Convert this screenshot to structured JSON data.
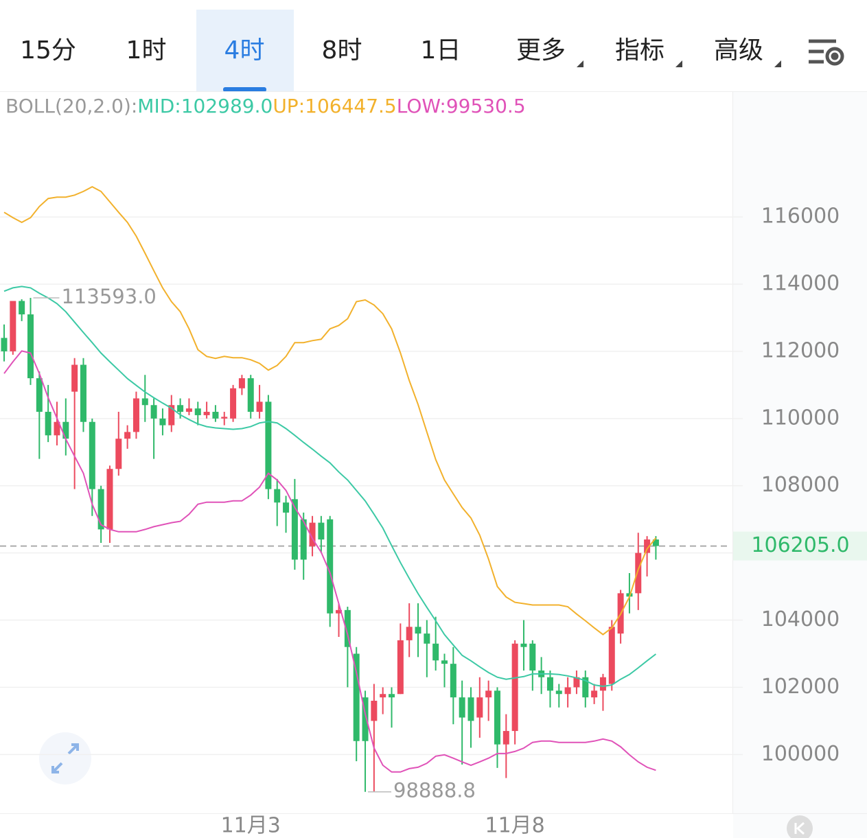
{
  "tabs": [
    "15分",
    "1时",
    "4时",
    "8时",
    "1日",
    "更多",
    "指标",
    "高级"
  ],
  "chart_data": {
    "type": "candlestick",
    "legend": [
      "BOLL(20,2.0):",
      "MID:102989.0",
      "UP:106447.5",
      "LOW:99530.5"
    ],
    "categories": [
      null,
      null,
      null,
      null,
      null,
      null,
      null,
      null,
      null,
      null,
      null,
      null,
      null,
      null,
      null,
      null,
      null,
      null,
      null,
      null,
      null,
      null,
      null,
      null,
      null,
      null,
      null,
      null,
      "11月3",
      null,
      null,
      null,
      null,
      null,
      null,
      null,
      null,
      null,
      null,
      null,
      null,
      null,
      null,
      null,
      null,
      null,
      null,
      null,
      null,
      null,
      null,
      null,
      null,
      null,
      null,
      null,
      null,
      null,
      "11月8",
      null,
      null,
      null,
      null,
      null,
      null,
      null,
      null,
      null,
      null,
      null,
      null,
      null,
      null,
      null,
      null
    ],
    "open": [
      112400,
      112000,
      113500,
      113100,
      111200,
      110200,
      109500,
      109900,
      110800,
      111600,
      109900,
      107900,
      106700,
      108500,
      109400,
      109600,
      110600,
      110400,
      110000,
      109800,
      110400,
      110200,
      110300,
      110100,
      110200,
      110000,
      110000,
      110900,
      111200,
      110200,
      110500,
      107900,
      107500,
      107600,
      107000,
      106200,
      106900,
      107000,
      104200,
      104300,
      103000,
      101700,
      101000,
      101700,
      101800,
      101800,
      103400,
      103800,
      103600,
      103300,
      102800,
      102700,
      101700,
      101700,
      101100,
      101700,
      101900,
      100300,
      100700,
      103300,
      103300,
      102500,
      102300,
      101900,
      101800,
      102000,
      102300,
      101700,
      101900,
      102100,
      103600,
      104800,
      104800,
      106000,
      106400
    ],
    "high": [
      112800,
      113500,
      113550,
      113593,
      111400,
      111000,
      110500,
      110600,
      111800,
      111800,
      110000,
      108000,
      108600,
      110200,
      109800,
      110800,
      111300,
      110600,
      110300,
      110700,
      110600,
      110600,
      110500,
      110500,
      110400,
      110200,
      111000,
      111300,
      111300,
      111000,
      110700,
      108200,
      107700,
      108200,
      107200,
      107100,
      107100,
      107100,
      104500,
      104400,
      103200,
      101900,
      102100,
      102000,
      102000,
      103900,
      104500,
      104500,
      104000,
      104100,
      103000,
      103200,
      102200,
      102000,
      102300,
      102200,
      102000,
      101200,
      103400,
      104000,
      103400,
      102900,
      102500,
      102100,
      102300,
      102500,
      102500,
      102100,
      102400,
      104000,
      104900,
      105400,
      106600,
      106500,
      106500
    ],
    "low": [
      111700,
      111900,
      112900,
      111000,
      108800,
      109300,
      109200,
      108900,
      107900,
      109600,
      107100,
      106300,
      106300,
      108300,
      109100,
      109400,
      109900,
      108800,
      109500,
      109600,
      110000,
      110100,
      109800,
      110000,
      109900,
      109800,
      109900,
      110700,
      110000,
      110000,
      107600,
      106800,
      106600,
      105500,
      105200,
      105900,
      106000,
      103800,
      103500,
      102000,
      99800,
      98888.8,
      98900,
      101200,
      100800,
      101800,
      102900,
      102900,
      102300,
      102500,
      102000,
      100900,
      99700,
      100200,
      100500,
      101000,
      99600,
      99300,
      100300,
      102500,
      101900,
      101800,
      101400,
      101400,
      101400,
      101800,
      101400,
      101500,
      101300,
      101900,
      103300,
      104200,
      104300,
      105300,
      105800
    ],
    "close": [
      112000,
      113500,
      113100,
      111200,
      110200,
      109500,
      109900,
      109400,
      111600,
      109900,
      107900,
      106700,
      108500,
      109400,
      109600,
      110600,
      110400,
      110000,
      109800,
      110400,
      110200,
      110300,
      110100,
      110200,
      110000,
      110050,
      110900,
      111200,
      110200,
      110500,
      107900,
      107500,
      107200,
      105800,
      105800,
      106900,
      106400,
      104200,
      104300,
      103200,
      100400,
      100400,
      101600,
      101800,
      101700,
      103400,
      103800,
      103600,
      103300,
      102800,
      102700,
      101700,
      101100,
      101000,
      101700,
      101900,
      100300,
      100700,
      103300,
      103200,
      102500,
      102300,
      101900,
      101800,
      102000,
      102300,
      101700,
      101900,
      102300,
      103800,
      104800,
      104700,
      106000,
      106400,
      106205
    ],
    "up_color": "#ec4a5e",
    "down_color": "#2fb96a",
    "bands": [
      {
        "color": "#3cc9a5",
        "values": [
          113790,
          113890,
          113930,
          113890,
          113730,
          113590,
          113420,
          113180,
          112870,
          112560,
          112260,
          111950,
          111690,
          111440,
          111190,
          110990,
          110790,
          110620,
          110460,
          110310,
          110110,
          109970,
          109840,
          109760,
          109720,
          109700,
          109680,
          109700,
          109760,
          109870,
          109910,
          109870,
          109700,
          109500,
          109290,
          109090,
          108880,
          108680,
          108410,
          108170,
          107860,
          107550,
          107150,
          106740,
          106220,
          105710,
          105240,
          104790,
          104380,
          103980,
          103570,
          103260,
          102950,
          102790,
          102610,
          102440,
          102300,
          102240,
          102280,
          102320,
          102400,
          102400,
          102400,
          102380,
          102340,
          102280,
          102200,
          102070,
          102030,
          102070,
          102240,
          102380,
          102580,
          102790,
          102989
        ]
      },
      {
        "color": "#f2b12c",
        "values": [
          116140,
          115980,
          115840,
          115980,
          116310,
          116550,
          116590,
          116590,
          116650,
          116760,
          116900,
          116760,
          116450,
          116140,
          115840,
          115430,
          114920,
          114400,
          113890,
          113480,
          113180,
          112670,
          112050,
          111850,
          111790,
          111850,
          111810,
          111810,
          111750,
          111640,
          111440,
          111580,
          111850,
          112260,
          112260,
          112320,
          112360,
          112670,
          112770,
          112970,
          113480,
          113530,
          113380,
          113120,
          112670,
          111950,
          111130,
          110420,
          109600,
          108780,
          108170,
          107760,
          107350,
          107040,
          106530,
          105820,
          105000,
          104690,
          104530,
          104490,
          104450,
          104450,
          104450,
          104450,
          104400,
          104180,
          103980,
          103770,
          103570,
          103770,
          104180,
          104690,
          105510,
          106120,
          106447.5
        ]
      },
      {
        "color": "#e052b8",
        "values": [
          111340,
          111690,
          112010,
          111950,
          111340,
          110620,
          110010,
          109390,
          108880,
          108370,
          107450,
          106840,
          106700,
          106630,
          106630,
          106630,
          106700,
          106780,
          106840,
          106900,
          106940,
          107150,
          107450,
          107510,
          107510,
          107510,
          107550,
          107550,
          107720,
          107960,
          108370,
          108170,
          107860,
          107350,
          106940,
          106430,
          106020,
          105410,
          104490,
          103570,
          102440,
          101210,
          100190,
          99680,
          99480,
          99480,
          99580,
          99620,
          99740,
          99950,
          99990,
          99890,
          99780,
          99680,
          99780,
          99890,
          100030,
          100030,
          100090,
          100190,
          100360,
          100400,
          100400,
          100360,
          100360,
          100360,
          100360,
          100400,
          100460,
          100400,
          100230,
          99990,
          99780,
          99620,
          99530.5
        ]
      }
    ],
    "legend_color": "#999999",
    "ylim": [
      98250,
      119700
    ],
    "yticks": [
      100000,
      102000,
      104000,
      106000,
      108000,
      110000,
      112000,
      114000,
      116000
    ],
    "max_label": {
      "value": 113593,
      "label": "113593.0"
    },
    "min_label": 98888.8,
    "last_price": {
      "value": 106205,
      "label": "106205.0"
    },
    "grid": true
  }
}
